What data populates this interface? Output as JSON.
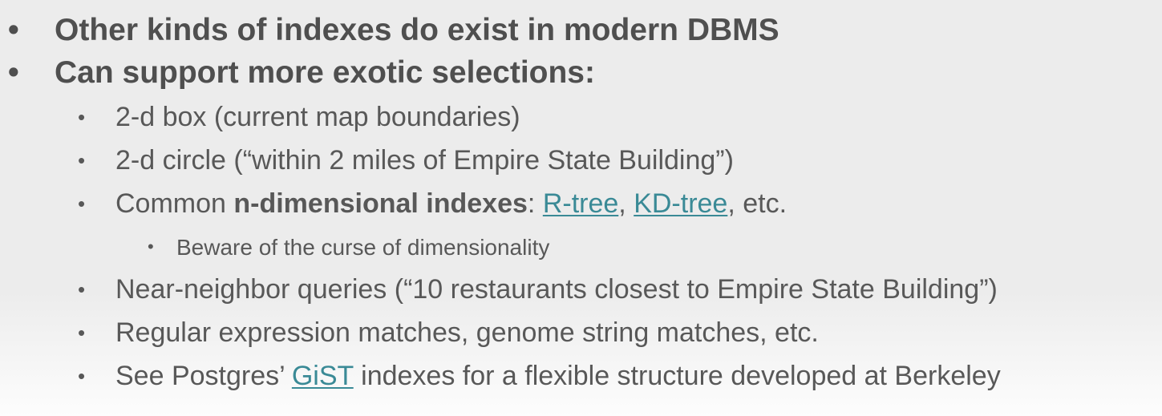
{
  "bullets": {
    "b1": "Other kinds of indexes do exist in modern DBMS",
    "b2": "Can support more exotic selections:",
    "s1": "2-d box (current map boundaries)",
    "s2": "2-d circle (“within 2 miles of Empire State Building”)",
    "s3": {
      "prefix": "Common ",
      "bold": "n-dimensional indexes",
      "colon": ": ",
      "link1": "R-tree",
      "comma": ", ",
      "link2": "KD-tree",
      "suffix": ", etc."
    },
    "ss1": "Beware of the curse of dimensionality",
    "s4": "Near-neighbor queries (“10 restaurants closest to Empire State Building”)",
    "s5": "Regular expression matches, genome string matches, etc.",
    "s6": {
      "prefix": "See Postgres’ ",
      "link": "GiST",
      "suffix": " indexes for a flexible structure developed at Berkeley"
    }
  },
  "bullet_glyph": "•",
  "colors": {
    "text": "#545454",
    "link": "#3a8a96",
    "background": "#ececec"
  }
}
